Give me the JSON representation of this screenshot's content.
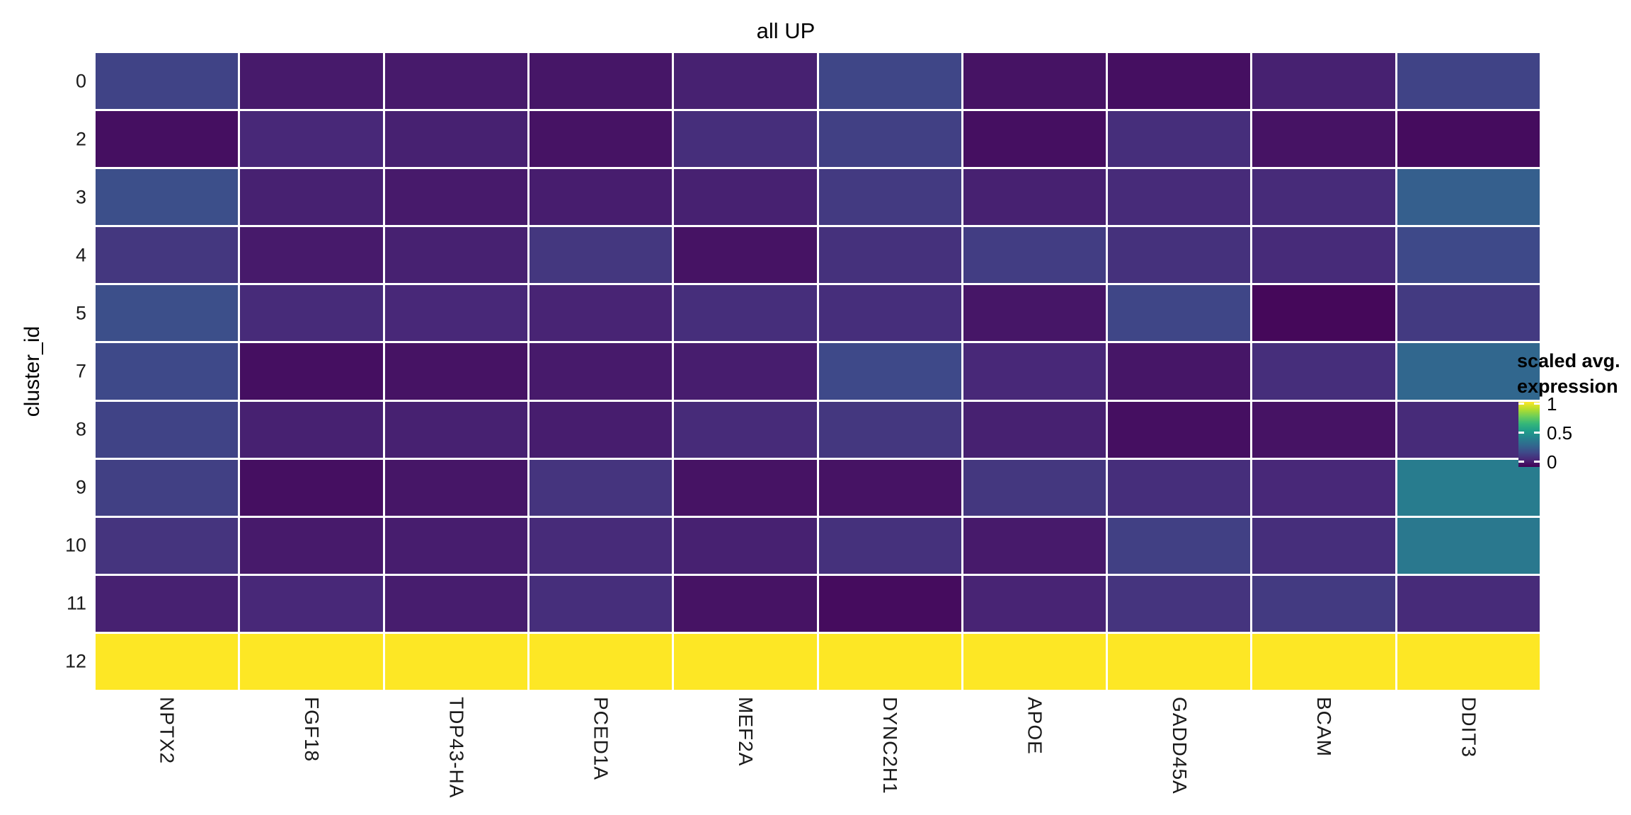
{
  "title": "all UP",
  "y_axis": {
    "title": "cluster_id"
  },
  "legend": {
    "title_line1": "scaled avg.",
    "title_line2": "expression",
    "ticks": [
      {
        "label": "1",
        "t": 1.0
      },
      {
        "label": "0.5",
        "t": 0.5
      },
      {
        "label": "0",
        "t": 0.0
      }
    ]
  },
  "colormap": {
    "name": "viridis",
    "stops": [
      "#440154",
      "#482878",
      "#3e4a89",
      "#31688e",
      "#26828e",
      "#1f9e89",
      "#35b779",
      "#6ece58",
      "#b5de2b",
      "#fde725"
    ]
  },
  "chart_data": {
    "type": "heatmap",
    "title": "all UP",
    "xlabel": "",
    "ylabel": "cluster_id",
    "legend_title": "scaled avg. expression",
    "legend_position": "right",
    "palette": "viridis",
    "domain": [
      0,
      1
    ],
    "columns": [
      "NPTX2",
      "FGF18",
      "TDP43-HA",
      "PCED1A",
      "MEF2A",
      "DYNC2H1",
      "APOE",
      "GADD45A",
      "BCAM",
      "DDIT3"
    ],
    "rows": [
      "0",
      "2",
      "3",
      "4",
      "5",
      "7",
      "8",
      "9",
      "10",
      "11",
      "12"
    ],
    "values": [
      [
        0.2,
        0.07,
        0.07,
        0.06,
        0.09,
        0.21,
        0.05,
        0.04,
        0.09,
        0.2
      ],
      [
        0.04,
        0.11,
        0.09,
        0.05,
        0.13,
        0.19,
        0.04,
        0.13,
        0.05,
        0.03
      ],
      [
        0.24,
        0.09,
        0.07,
        0.08,
        0.09,
        0.17,
        0.09,
        0.12,
        0.12,
        0.3
      ],
      [
        0.16,
        0.07,
        0.09,
        0.16,
        0.05,
        0.14,
        0.18,
        0.14,
        0.12,
        0.22
      ],
      [
        0.24,
        0.12,
        0.11,
        0.1,
        0.13,
        0.13,
        0.06,
        0.21,
        0.02,
        0.17
      ],
      [
        0.22,
        0.04,
        0.05,
        0.07,
        0.08,
        0.22,
        0.11,
        0.06,
        0.13,
        0.33
      ],
      [
        0.2,
        0.09,
        0.09,
        0.08,
        0.12,
        0.16,
        0.09,
        0.04,
        0.05,
        0.12
      ],
      [
        0.19,
        0.04,
        0.06,
        0.15,
        0.05,
        0.05,
        0.16,
        0.13,
        0.11,
        0.42
      ],
      [
        0.15,
        0.07,
        0.08,
        0.12,
        0.09,
        0.14,
        0.07,
        0.19,
        0.13,
        0.4
      ],
      [
        0.09,
        0.11,
        0.08,
        0.13,
        0.05,
        0.03,
        0.1,
        0.15,
        0.17,
        0.12
      ],
      [
        1.0,
        1.0,
        1.0,
        1.0,
        1.0,
        1.0,
        1.0,
        1.0,
        1.0,
        1.0
      ]
    ]
  }
}
